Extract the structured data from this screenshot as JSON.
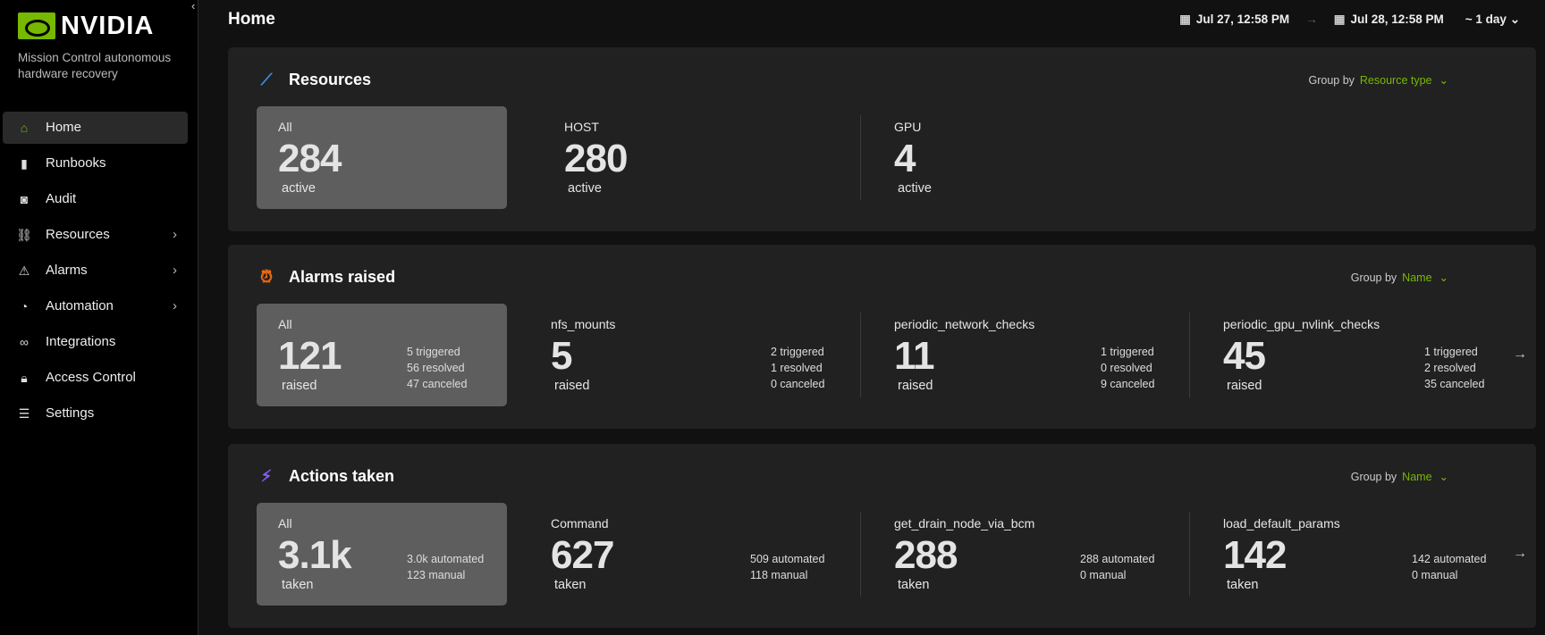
{
  "sidebar": {
    "brand": "NVIDIA",
    "tagline": "Mission Control autonomous hardware recovery",
    "items": [
      {
        "label": "Home",
        "icon": "home-icon",
        "active": true
      },
      {
        "label": "Runbooks",
        "icon": "book-icon"
      },
      {
        "label": "Audit",
        "icon": "eye-icon"
      },
      {
        "label": "Resources",
        "icon": "tree-icon",
        "submenu": true
      },
      {
        "label": "Alarms",
        "icon": "alarm-icon",
        "submenu": true
      },
      {
        "label": "Automation",
        "icon": "clock-icon",
        "submenu": true
      },
      {
        "label": "Integrations",
        "icon": "link-icon"
      },
      {
        "label": "Access Control",
        "icon": "lock-icon"
      },
      {
        "label": "Settings",
        "icon": "sliders-icon"
      }
    ]
  },
  "header": {
    "title": "Home",
    "from": "Jul 27, 12:58 PM",
    "to": "Jul 28, 12:58 PM",
    "duration": "~ 1 day"
  },
  "colors": {
    "accent": "#76b900",
    "alarm": "#f26a0f",
    "action": "#8a5cf6",
    "resource": "#3b8ef0"
  },
  "cards": {
    "resources": {
      "title": "Resources",
      "group_by": "Group by",
      "group_value": "Resource type",
      "all": {
        "label": "All",
        "value": "284",
        "unit": "active"
      },
      "cols": [
        {
          "label": "HOST",
          "value": "280",
          "unit": "active"
        },
        {
          "label": "GPU",
          "value": "4",
          "unit": "active"
        }
      ]
    },
    "alarms": {
      "title": "Alarms raised",
      "group_by": "Group by",
      "group_value": "Name",
      "all": {
        "label": "All",
        "value": "121",
        "unit": "raised",
        "stats": [
          "5 triggered",
          "56 resolved",
          "47 canceled"
        ]
      },
      "cols": [
        {
          "label": "nfs_mounts",
          "value": "5",
          "unit": "raised",
          "stats": [
            "2 triggered",
            "1 resolved",
            "0 canceled"
          ]
        },
        {
          "label": "periodic_network_checks",
          "value": "11",
          "unit": "raised",
          "stats": [
            "1 triggered",
            "0 resolved",
            "9 canceled"
          ]
        },
        {
          "label": "periodic_gpu_nvlink_checks",
          "value": "45",
          "unit": "raised",
          "stats": [
            "1 triggered",
            "2 resolved",
            "35 canceled"
          ]
        }
      ]
    },
    "actions": {
      "title": "Actions taken",
      "group_by": "Group by",
      "group_value": "Name",
      "all": {
        "label": "All",
        "value": "3.1k",
        "unit": "taken",
        "stats": [
          "3.0k automated",
          "123 manual"
        ]
      },
      "cols": [
        {
          "label": "Command",
          "value": "627",
          "unit": "taken",
          "stats": [
            "509 automated",
            "118 manual"
          ]
        },
        {
          "label": "get_drain_node_via_bcm",
          "value": "288",
          "unit": "taken",
          "stats": [
            "288 automated",
            "0 manual"
          ]
        },
        {
          "label": "load_default_params",
          "value": "142",
          "unit": "taken",
          "stats": [
            "142 automated",
            "0 manual"
          ]
        }
      ]
    }
  }
}
